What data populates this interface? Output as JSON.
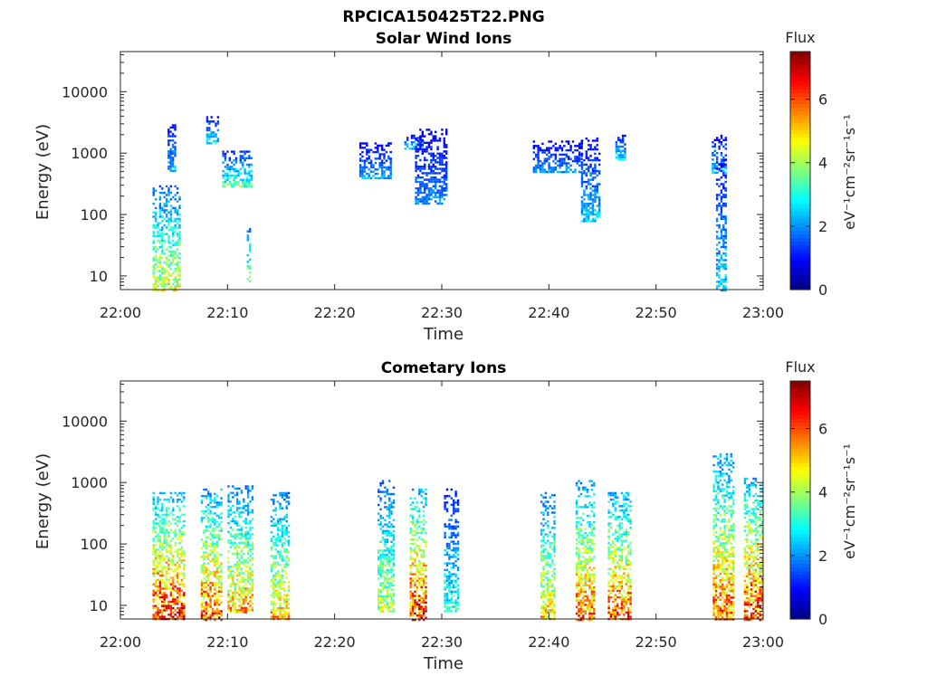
{
  "figure": {
    "filename": "RPCICA150425T22.PNG"
  },
  "chart_data": [
    {
      "type": "heatmap",
      "title": "Solar Wind Ions",
      "xlabel": "Time",
      "ylabel": "Energy (eV)",
      "x_tick_labels": [
        "22:00",
        "22:10",
        "22:20",
        "22:30",
        "22:40",
        "22:50",
        "23:00"
      ],
      "xlim_minutes": [
        0,
        60
      ],
      "y_scale": "log",
      "ylim": [
        6,
        45000
      ],
      "y_tick_labels": [
        "10",
        "100",
        "1000",
        "10000"
      ],
      "y_ticks": [
        10,
        100,
        1000,
        10000
      ],
      "colorbar": {
        "title": "Flux",
        "label": "eV⁻¹cm⁻²sr⁻¹s⁻¹",
        "range": [
          0,
          7.5
        ],
        "tick_labels": [
          "0",
          "2",
          "4",
          "6"
        ],
        "ticks": [
          0,
          2,
          4,
          6
        ],
        "colormap": "jet"
      },
      "grid": false,
      "bursts": [
        {
          "t": [
            3.0,
            5.6
          ],
          "e": [
            6,
            300
          ],
          "peak": 4.5
        },
        {
          "t": [
            4.4,
            5.2
          ],
          "e": [
            500,
            3200
          ],
          "peak": 2.3
        },
        {
          "t": [
            8.0,
            9.2
          ],
          "e": [
            1500,
            4000
          ],
          "peak": 2.8
        },
        {
          "t": [
            9.5,
            12.2
          ],
          "e": [
            280,
            1100
          ],
          "peak": 3.4
        },
        {
          "t": [
            11.8,
            12.2
          ],
          "e": [
            8,
            60
          ],
          "peak": 4.3
        },
        {
          "t": [
            22.3,
            25.2
          ],
          "e": [
            400,
            1500
          ],
          "peak": 2.2
        },
        {
          "t": [
            26.5,
            28.3
          ],
          "e": [
            1200,
            2000
          ],
          "peak": 2.6
        },
        {
          "t": [
            27.5,
            30.5
          ],
          "e": [
            150,
            2500
          ],
          "peak": 2.0
        },
        {
          "t": [
            38.5,
            43.0
          ],
          "e": [
            500,
            1600
          ],
          "peak": 2.0
        },
        {
          "t": [
            43.0,
            44.8
          ],
          "e": [
            80,
            1800
          ],
          "peak": 2.4
        },
        {
          "t": [
            46.2,
            47.2
          ],
          "e": [
            800,
            2000
          ],
          "peak": 2.8
        },
        {
          "t": [
            55.2,
            56.5
          ],
          "e": [
            500,
            2000
          ],
          "peak": 2.4
        },
        {
          "t": [
            55.6,
            56.5
          ],
          "e": [
            6,
            800
          ],
          "peak": 2.6
        }
      ]
    },
    {
      "type": "heatmap",
      "title": "Cometary Ions",
      "xlabel": "Time",
      "ylabel": "Energy (eV)",
      "x_tick_labels": [
        "22:00",
        "22:10",
        "22:20",
        "22:30",
        "22:40",
        "22:50",
        "23:00"
      ],
      "xlim_minutes": [
        0,
        60
      ],
      "y_scale": "log",
      "ylim": [
        6,
        45000
      ],
      "y_tick_labels": [
        "10",
        "100",
        "1000",
        "10000"
      ],
      "y_ticks": [
        10,
        100,
        1000,
        10000
      ],
      "colorbar": {
        "title": "Flux",
        "label": "eV⁻¹cm⁻²sr⁻¹s⁻¹",
        "range": [
          0,
          7.5
        ],
        "tick_labels": [
          "0",
          "2",
          "4",
          "6"
        ],
        "ticks": [
          0,
          2,
          4,
          6
        ],
        "colormap": "jet"
      },
      "grid": false,
      "bursts": [
        {
          "t": [
            3.0,
            6.0
          ],
          "e": [
            6,
            700
          ],
          "peak": 6.5
        },
        {
          "t": [
            7.5,
            9.5
          ],
          "e": [
            6,
            800
          ],
          "peak": 6.0
        },
        {
          "t": [
            10.0,
            12.3
          ],
          "e": [
            8,
            900
          ],
          "peak": 5.2
        },
        {
          "t": [
            14.0,
            15.8
          ],
          "e": [
            6,
            700
          ],
          "peak": 5.0
        },
        {
          "t": [
            24.0,
            25.5
          ],
          "e": [
            8,
            1100
          ],
          "peak": 4.2
        },
        {
          "t": [
            27.0,
            28.6
          ],
          "e": [
            6,
            800
          ],
          "peak": 6.5
        },
        {
          "t": [
            30.2,
            31.6
          ],
          "e": [
            8,
            800
          ],
          "peak": 3.0
        },
        {
          "t": [
            39.2,
            40.6
          ],
          "e": [
            6,
            700
          ],
          "peak": 5.0
        },
        {
          "t": [
            42.5,
            44.3
          ],
          "e": [
            6,
            1100
          ],
          "peak": 5.8
        },
        {
          "t": [
            45.5,
            47.6
          ],
          "e": [
            6,
            700
          ],
          "peak": 6.0
        },
        {
          "t": [
            55.3,
            57.3
          ],
          "e": [
            6,
            3000
          ],
          "peak": 5.8
        },
        {
          "t": [
            58.2,
            60.0
          ],
          "e": [
            6,
            1200
          ],
          "peak": 6.3
        }
      ]
    }
  ]
}
